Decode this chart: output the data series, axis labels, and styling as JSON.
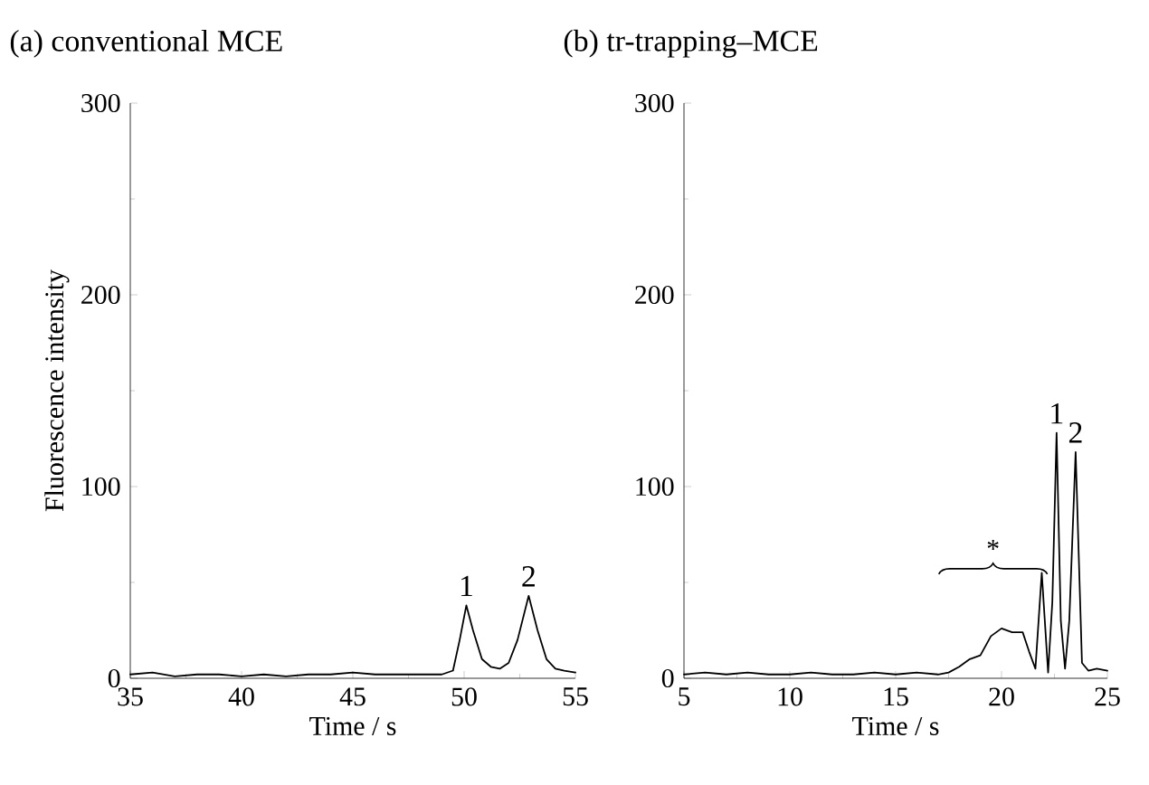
{
  "chart_data": [
    {
      "type": "line",
      "title": "(a) conventional MCE",
      "xlabel": "Time / s",
      "ylabel": "Fluorescence intensity",
      "xlim": [
        35,
        55
      ],
      "ylim": [
        0,
        300
      ],
      "xticks": [
        35,
        40,
        45,
        50,
        55
      ],
      "yticks": [
        0,
        100,
        200,
        300
      ],
      "color": "#000000",
      "x": [
        35,
        36,
        37,
        38,
        39,
        40,
        41,
        42,
        43,
        44,
        45,
        46,
        47,
        48,
        49,
        49.5,
        49.8,
        50.1,
        50.4,
        50.8,
        51.2,
        51.6,
        52.0,
        52.4,
        52.9,
        53.3,
        53.7,
        54.1,
        54.5,
        55
      ],
      "values": [
        2,
        3,
        1,
        2,
        2,
        1,
        2,
        1,
        2,
        2,
        3,
        2,
        2,
        2,
        2,
        4,
        20,
        38,
        25,
        10,
        6,
        5,
        8,
        20,
        43,
        25,
        10,
        5,
        4,
        3
      ],
      "annotations": [
        {
          "text": "1",
          "x": 50.1,
          "y": 38
        },
        {
          "text": "2",
          "x": 52.9,
          "y": 43
        }
      ]
    },
    {
      "type": "line",
      "title": "(b) tr-trapping–MCE",
      "xlabel": "Time / s",
      "xlim": [
        5,
        25
      ],
      "ylim": [
        0,
        300
      ],
      "xticks": [
        5,
        10,
        15,
        20,
        25
      ],
      "yticks": [
        0,
        100,
        200,
        300
      ],
      "color": "#000000",
      "x": [
        5,
        6,
        7,
        8,
        9,
        10,
        11,
        12,
        13,
        14,
        15,
        16,
        17,
        17.5,
        18,
        18.5,
        19,
        19.5,
        20,
        20.5,
        21,
        21.3,
        21.6,
        21.9,
        22.2,
        22.4,
        22.6,
        22.8,
        23.0,
        23.2,
        23.5,
        23.8,
        24.1,
        24.5,
        25
      ],
      "values": [
        2,
        3,
        2,
        3,
        2,
        2,
        3,
        2,
        2,
        3,
        2,
        3,
        2,
        3,
        6,
        10,
        12,
        22,
        26,
        24,
        24,
        14,
        5,
        55,
        3,
        40,
        128,
        30,
        5,
        30,
        118,
        8,
        4,
        5,
        4
      ],
      "annotations": [
        {
          "text": "*",
          "x": 19.6,
          "y": 26
        },
        {
          "text": "1",
          "x": 22.6,
          "y": 128
        },
        {
          "text": "2",
          "x": 23.5,
          "y": 118
        }
      ]
    }
  ]
}
